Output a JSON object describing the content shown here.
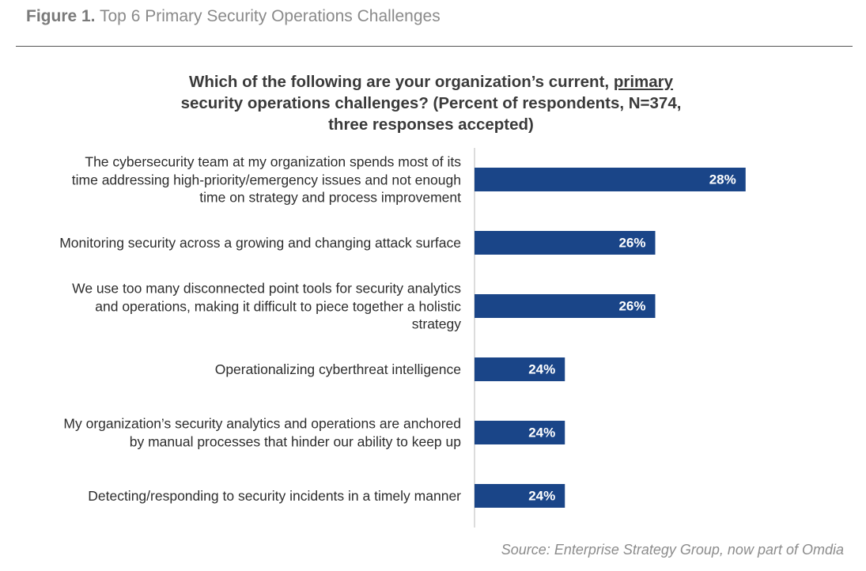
{
  "chart_data": {
    "type": "bar",
    "orientation": "horizontal",
    "figure_label": "Figure 1.",
    "title": "Top 6 Primary Security Operations Challenges",
    "question": [
      "Which of the following are your organization’s current,",
      "primary",
      "security operations challenges? (Percent of respondents, N=374, three responses accepted)"
    ],
    "categories": [
      "The cybersecurity team at my organization spends most of its time addressing high-priority/emergency issues and not enough time on strategy and process improvement",
      "Monitoring security across a growing and changing attack surface",
      "We use too many disconnected point tools for security analytics and operations, making it difficult to piece together a holistic strategy",
      "Operationalizing cyberthreat intelligence",
      "My organization’s security analytics and operations are anchored by manual processes that hinder our ability to keep up",
      "Detecting/responding to security incidents in a timely manner"
    ],
    "values": [
      28,
      26,
      26,
      24,
      24,
      24
    ],
    "value_labels": [
      "28%",
      "26%",
      "26%",
      "24%",
      "24%",
      "24%"
    ],
    "color": "#1a4588",
    "xlim": [
      22,
      30
    ],
    "source": "Source: Enterprise Strategy Group, now part of Omdia"
  }
}
